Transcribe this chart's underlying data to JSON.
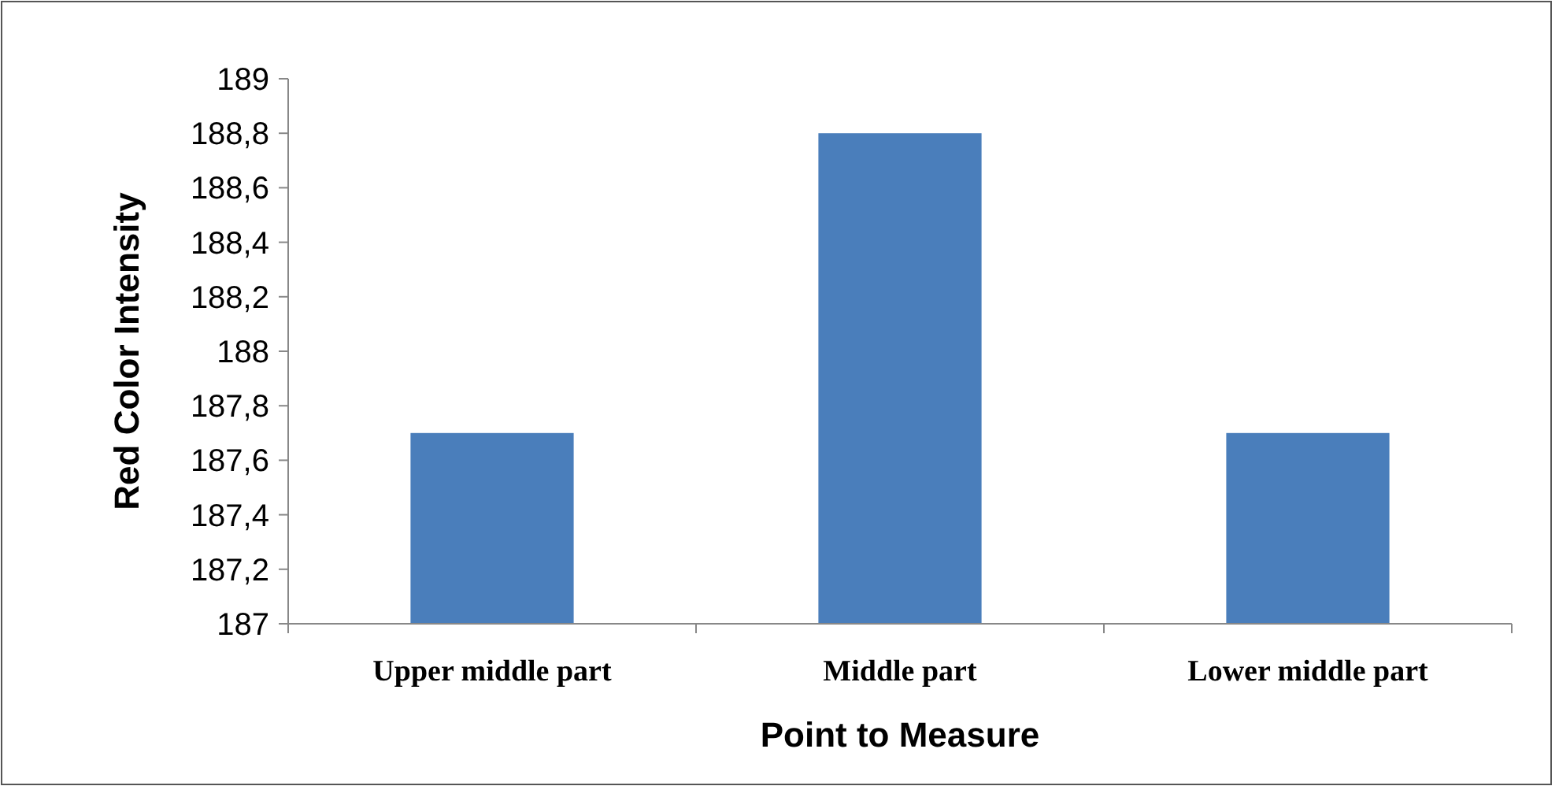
{
  "chart_data": {
    "type": "bar",
    "xlabel": "Point to Measure",
    "ylabel": "Red Color Intensity",
    "categories": [
      "Upper middle part",
      "Middle part",
      "Lower middle part"
    ],
    "values": [
      187.7,
      188.8,
      187.7
    ],
    "color": "#4a7ebb",
    "ylim": [
      187,
      189
    ],
    "yticks": [
      187,
      {
        "value": 187.2,
        "label": "187,2"
      },
      {
        "value": 187.4,
        "label": "187,4"
      },
      {
        "value": 187.6,
        "label": "187,6"
      },
      {
        "value": 187.8,
        "label": "187,8"
      },
      188,
      {
        "value": 188.2,
        "label": "188,2"
      },
      {
        "value": 188.4,
        "label": "188,4"
      },
      {
        "value": 188.6,
        "label": "188,6"
      },
      {
        "value": 188.8,
        "label": "188,8"
      },
      189
    ],
    "grid": false
  }
}
